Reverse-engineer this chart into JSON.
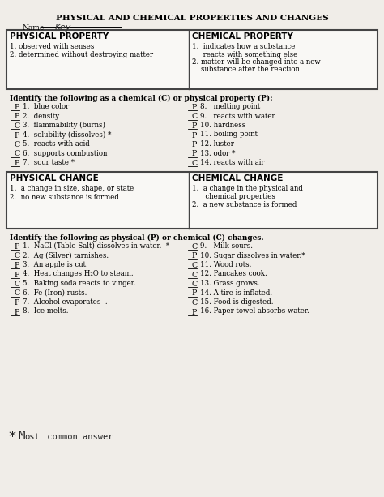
{
  "title": "PHYSICAL AND CHEMICAL PROPERTIES AND CHANGES",
  "name_label": "Name",
  "name_value": "Key",
  "bg_color": "#f0ede8",
  "phys_prop_title": "PHYSICAL PROPERTY",
  "phys_prop_items": [
    "1. observed with senses",
    "2. determined without destroying matter"
  ],
  "chem_prop_title": "CHEMICAL PROPERTY",
  "chem_prop_items": [
    "1.  indicates how a substance",
    "     reacts with something else",
    "2. matter will be changed into a new",
    "    substance after the reaction"
  ],
  "section2_header": "Identify the following as a chemical (C) or physical property (P):",
  "prop_left": [
    [
      "P",
      "1.  blue color"
    ],
    [
      "P",
      "2.  density"
    ],
    [
      "C",
      "3.  flammability (burns)"
    ],
    [
      "P",
      "4.  solubility (dissolves) *"
    ],
    [
      "C",
      "5.  reacts with acid"
    ],
    [
      "C",
      "6.  supports combustion"
    ],
    [
      "P",
      "7.  sour taste *"
    ]
  ],
  "prop_right": [
    [
      "P",
      "8.   melting point"
    ],
    [
      "C",
      "9.   reacts with water"
    ],
    [
      "P",
      "10. hardness"
    ],
    [
      "P",
      "11. boiling point"
    ],
    [
      "P",
      "12. luster"
    ],
    [
      "P",
      "13. odor *"
    ],
    [
      "C",
      "14. reacts with air"
    ]
  ],
  "phys_change_title": "PHYSICAL CHANGE",
  "phys_change_items": [
    "1.  a change in size, shape, or state",
    "2.  no new substance is formed"
  ],
  "chem_change_title": "CHEMICAL CHANGE",
  "chem_change_items": [
    "1.  a change in the physical and",
    "      chemical properties",
    "2.  a new substance is formed"
  ],
  "section3_header": "Identify the following as physical (P) or chemical (C) changes.",
  "change_left": [
    [
      "P",
      "1.  NaCl (Table Salt) dissolves in water.  *"
    ],
    [
      "C",
      "2.  Ag (Silver) tarnishes."
    ],
    [
      "P",
      "3.  An apple is cut."
    ],
    [
      "P",
      "4.  Heat changes H₂O to steam."
    ],
    [
      "C",
      "5.  Baking soda reacts to vinger."
    ],
    [
      "C",
      "6.  Fe (Iron) rusts."
    ],
    [
      "P",
      "7.  Alcohol evaporates  ."
    ],
    [
      "P",
      "8.  Ice melts."
    ]
  ],
  "change_right": [
    [
      "C",
      "9.   Milk sours."
    ],
    [
      "P",
      "10. Sugar dissolves in water.*"
    ],
    [
      "C",
      "11. Wood rots."
    ],
    [
      "C",
      "12. Pancakes cook."
    ],
    [
      "C",
      "13. Grass grows."
    ],
    [
      "P",
      "14. A tire is inflated."
    ],
    [
      "C",
      "15. Food is digested."
    ],
    [
      "P",
      "16. Paper towel absorbs water."
    ]
  ],
  "footnote_star": "* ",
  "footnote_text": "Most common answer"
}
